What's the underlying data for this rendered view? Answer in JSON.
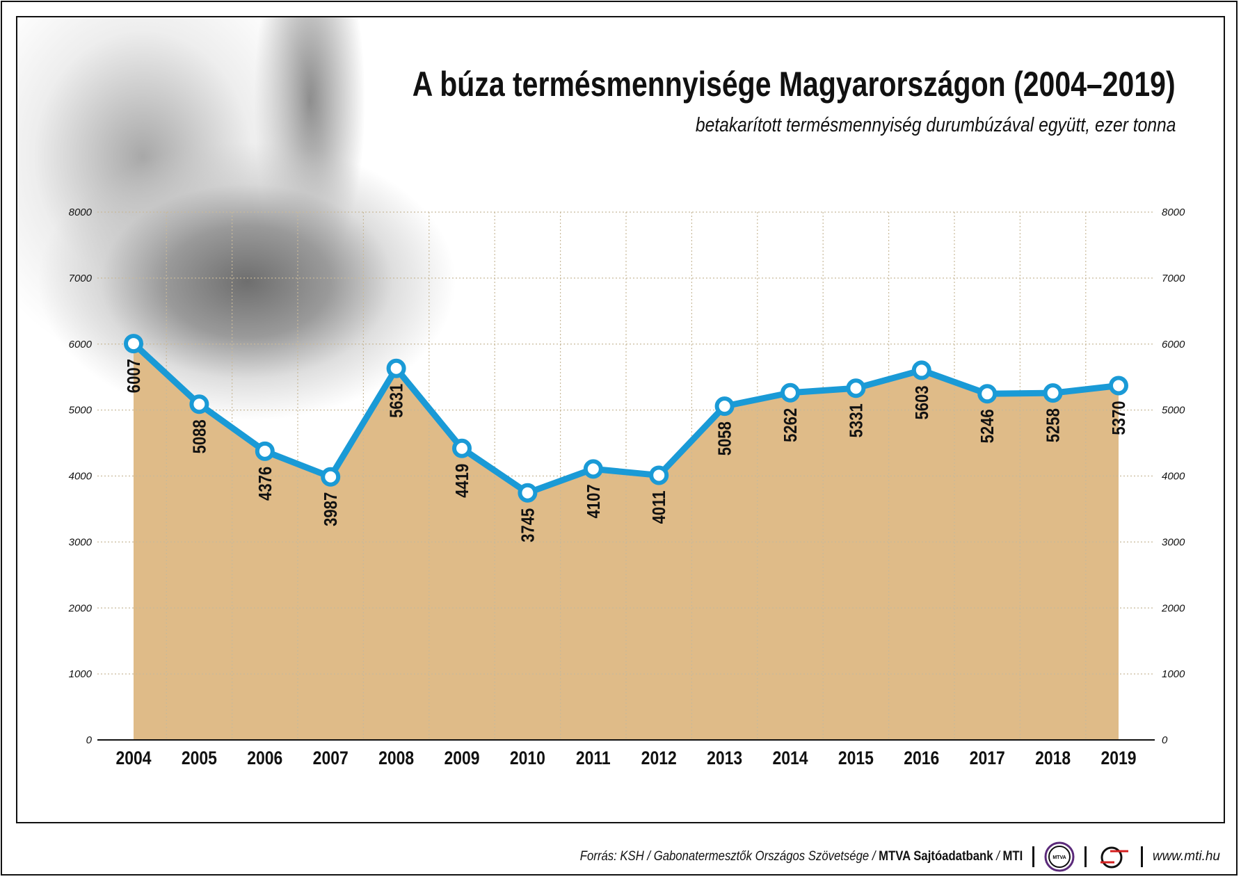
{
  "title": "A búza termésmennyisége Magyarországon (2004–2019)",
  "subtitle": "betakarított termésmennyiség durumbúzával együtt, ezer tonna",
  "footer": {
    "source_prefix": "Forrás: KSH / Gabonatermesztők Országos Szövetsége / ",
    "source_bold": "MTVA Sajtóadatbank",
    "source_sep": " / ",
    "source_bold2": "MTI",
    "logo1_text": "MTVA",
    "url": "www.mti.hu"
  },
  "chart_data": {
    "type": "area",
    "categories": [
      "2004",
      "2005",
      "2006",
      "2007",
      "2008",
      "2009",
      "2010",
      "2011",
      "2012",
      "2013",
      "2014",
      "2015",
      "2016",
      "2017",
      "2018",
      "2019"
    ],
    "values": [
      6007,
      5088,
      4376,
      3987,
      5631,
      4419,
      3745,
      4107,
      4011,
      5058,
      5262,
      5331,
      5603,
      5246,
      5258,
      5370
    ],
    "ylim": [
      0,
      8000
    ],
    "yticks": [
      "0",
      "1000",
      "2000",
      "3000",
      "4000",
      "5000",
      "6000",
      "7000",
      "8000"
    ],
    "y_axes": "left and right",
    "grid": "dotted",
    "colors": {
      "line": "#1a9ad6",
      "fill": "#dfbb88",
      "marker_fill": "#ffffff",
      "grid": "#c8b99a"
    }
  }
}
